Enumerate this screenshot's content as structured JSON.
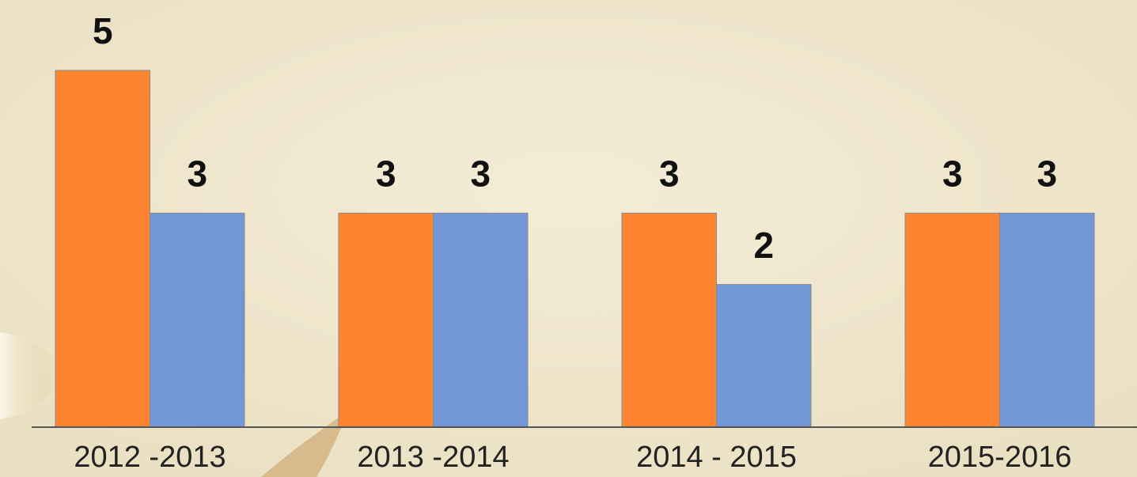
{
  "chart_data": {
    "type": "bar",
    "categories": [
      "2012 -2013",
      "2013 -2014",
      "2014 - 2015",
      "2015-2016"
    ],
    "series": [
      {
        "color": "#fd8532",
        "values": [
          5,
          3,
          3,
          3
        ]
      },
      {
        "color": "#7396d6",
        "values": [
          3,
          3,
          2,
          3
        ]
      }
    ]
  }
}
